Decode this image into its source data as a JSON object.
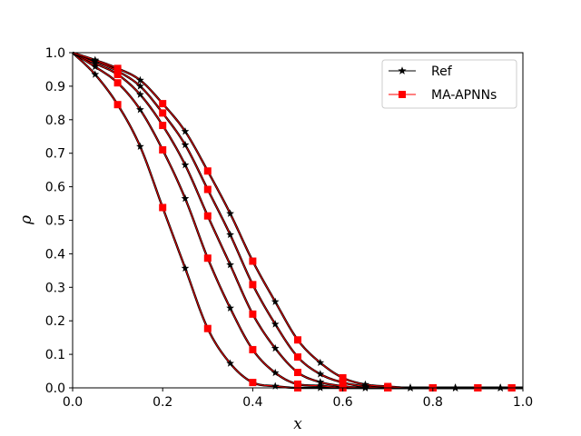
{
  "chart_data": {
    "type": "line",
    "xlabel": "x",
    "ylabel": "ρ",
    "xlim": [
      0.0,
      1.0
    ],
    "ylim": [
      0.0,
      1.0
    ],
    "xticks": [
      "0.0",
      "0.2",
      "0.4",
      "0.6",
      "0.8",
      "1.0"
    ],
    "yticks": [
      "0.0",
      "0.1",
      "0.2",
      "0.3",
      "0.4",
      "0.5",
      "0.6",
      "0.7",
      "0.8",
      "0.9",
      "1.0"
    ],
    "grid": false,
    "legend_position": "top-right",
    "legend": [
      {
        "label": "Ref",
        "color": "#000000",
        "marker": "star"
      },
      {
        "label": "MA-APNNs",
        "color": "#ff0000",
        "marker": "square"
      }
    ],
    "colors": {
      "ref": "#000000",
      "ma": "#ff0000"
    },
    "curves": [
      {
        "ref_markers": [
          [
            0.05,
            0.935
          ],
          [
            0.15,
            0.72
          ],
          [
            0.25,
            0.357
          ],
          [
            0.35,
            0.073
          ],
          [
            0.45,
            0.005
          ],
          [
            0.55,
            0.0
          ],
          [
            0.65,
            0.0
          ],
          [
            0.75,
            0.0
          ],
          [
            0.85,
            0.0
          ],
          [
            0.95,
            0.0
          ]
        ],
        "ma_markers": [
          [
            0.1,
            0.845
          ],
          [
            0.2,
            0.538
          ],
          [
            0.3,
            0.177
          ],
          [
            0.4,
            0.016
          ],
          [
            0.5,
            0.0
          ],
          [
            0.6,
            0.0
          ],
          [
            0.7,
            0.0
          ],
          [
            0.8,
            0.0
          ],
          [
            0.9,
            0.0
          ],
          [
            0.975,
            0.0
          ]
        ]
      },
      {
        "ref_markers": [
          [
            0.05,
            0.958
          ],
          [
            0.15,
            0.83
          ],
          [
            0.25,
            0.565
          ],
          [
            0.35,
            0.238
          ],
          [
            0.45,
            0.045
          ],
          [
            0.55,
            0.006
          ],
          [
            0.65,
            0.0
          ],
          [
            0.75,
            0.0
          ],
          [
            0.85,
            0.0
          ],
          [
            0.95,
            0.0
          ]
        ],
        "ma_markers": [
          [
            0.1,
            0.91
          ],
          [
            0.2,
            0.71
          ],
          [
            0.3,
            0.387
          ],
          [
            0.4,
            0.114
          ],
          [
            0.5,
            0.011
          ],
          [
            0.6,
            0.0
          ],
          [
            0.7,
            0.0
          ],
          [
            0.8,
            0.0
          ],
          [
            0.9,
            0.0
          ],
          [
            0.975,
            0.0
          ]
        ]
      },
      {
        "ref_markers": [
          [
            0.05,
            0.968
          ],
          [
            0.15,
            0.875
          ],
          [
            0.25,
            0.665
          ],
          [
            0.35,
            0.367
          ],
          [
            0.45,
            0.118
          ],
          [
            0.55,
            0.017
          ],
          [
            0.65,
            0.0
          ],
          [
            0.75,
            0.0
          ],
          [
            0.85,
            0.0
          ],
          [
            0.95,
            0.0
          ]
        ],
        "ma_markers": [
          [
            0.1,
            0.935
          ],
          [
            0.2,
            0.783
          ],
          [
            0.3,
            0.513
          ],
          [
            0.4,
            0.22
          ],
          [
            0.5,
            0.046
          ],
          [
            0.6,
            0.005
          ],
          [
            0.7,
            0.0
          ],
          [
            0.8,
            0.0
          ],
          [
            0.9,
            0.0
          ],
          [
            0.975,
            0.0
          ]
        ]
      },
      {
        "ref_markers": [
          [
            0.05,
            0.975
          ],
          [
            0.15,
            0.9
          ],
          [
            0.25,
            0.725
          ],
          [
            0.35,
            0.457
          ],
          [
            0.45,
            0.19
          ],
          [
            0.55,
            0.041
          ],
          [
            0.65,
            0.004
          ],
          [
            0.75,
            0.0
          ],
          [
            0.85,
            0.0
          ],
          [
            0.95,
            0.0
          ]
        ],
        "ma_markers": [
          [
            0.1,
            0.945
          ],
          [
            0.2,
            0.82
          ],
          [
            0.3,
            0.592
          ],
          [
            0.4,
            0.308
          ],
          [
            0.5,
            0.092
          ],
          [
            0.6,
            0.016
          ],
          [
            0.7,
            0.0
          ],
          [
            0.8,
            0.0
          ],
          [
            0.9,
            0.0
          ],
          [
            0.975,
            0.0
          ]
        ]
      },
      {
        "ref_markers": [
          [
            0.05,
            0.978
          ],
          [
            0.15,
            0.918
          ],
          [
            0.25,
            0.765
          ],
          [
            0.35,
            0.52
          ],
          [
            0.45,
            0.257
          ],
          [
            0.55,
            0.075
          ],
          [
            0.65,
            0.01
          ],
          [
            0.75,
            0.0
          ],
          [
            0.85,
            0.0
          ],
          [
            0.95,
            0.0
          ]
        ],
        "ma_markers": [
          [
            0.1,
            0.953
          ],
          [
            0.2,
            0.848
          ],
          [
            0.3,
            0.647
          ],
          [
            0.4,
            0.378
          ],
          [
            0.5,
            0.143
          ],
          [
            0.6,
            0.03
          ],
          [
            0.7,
            0.004
          ],
          [
            0.8,
            0.0
          ],
          [
            0.9,
            0.0
          ],
          [
            0.975,
            0.0
          ]
        ]
      }
    ]
  }
}
